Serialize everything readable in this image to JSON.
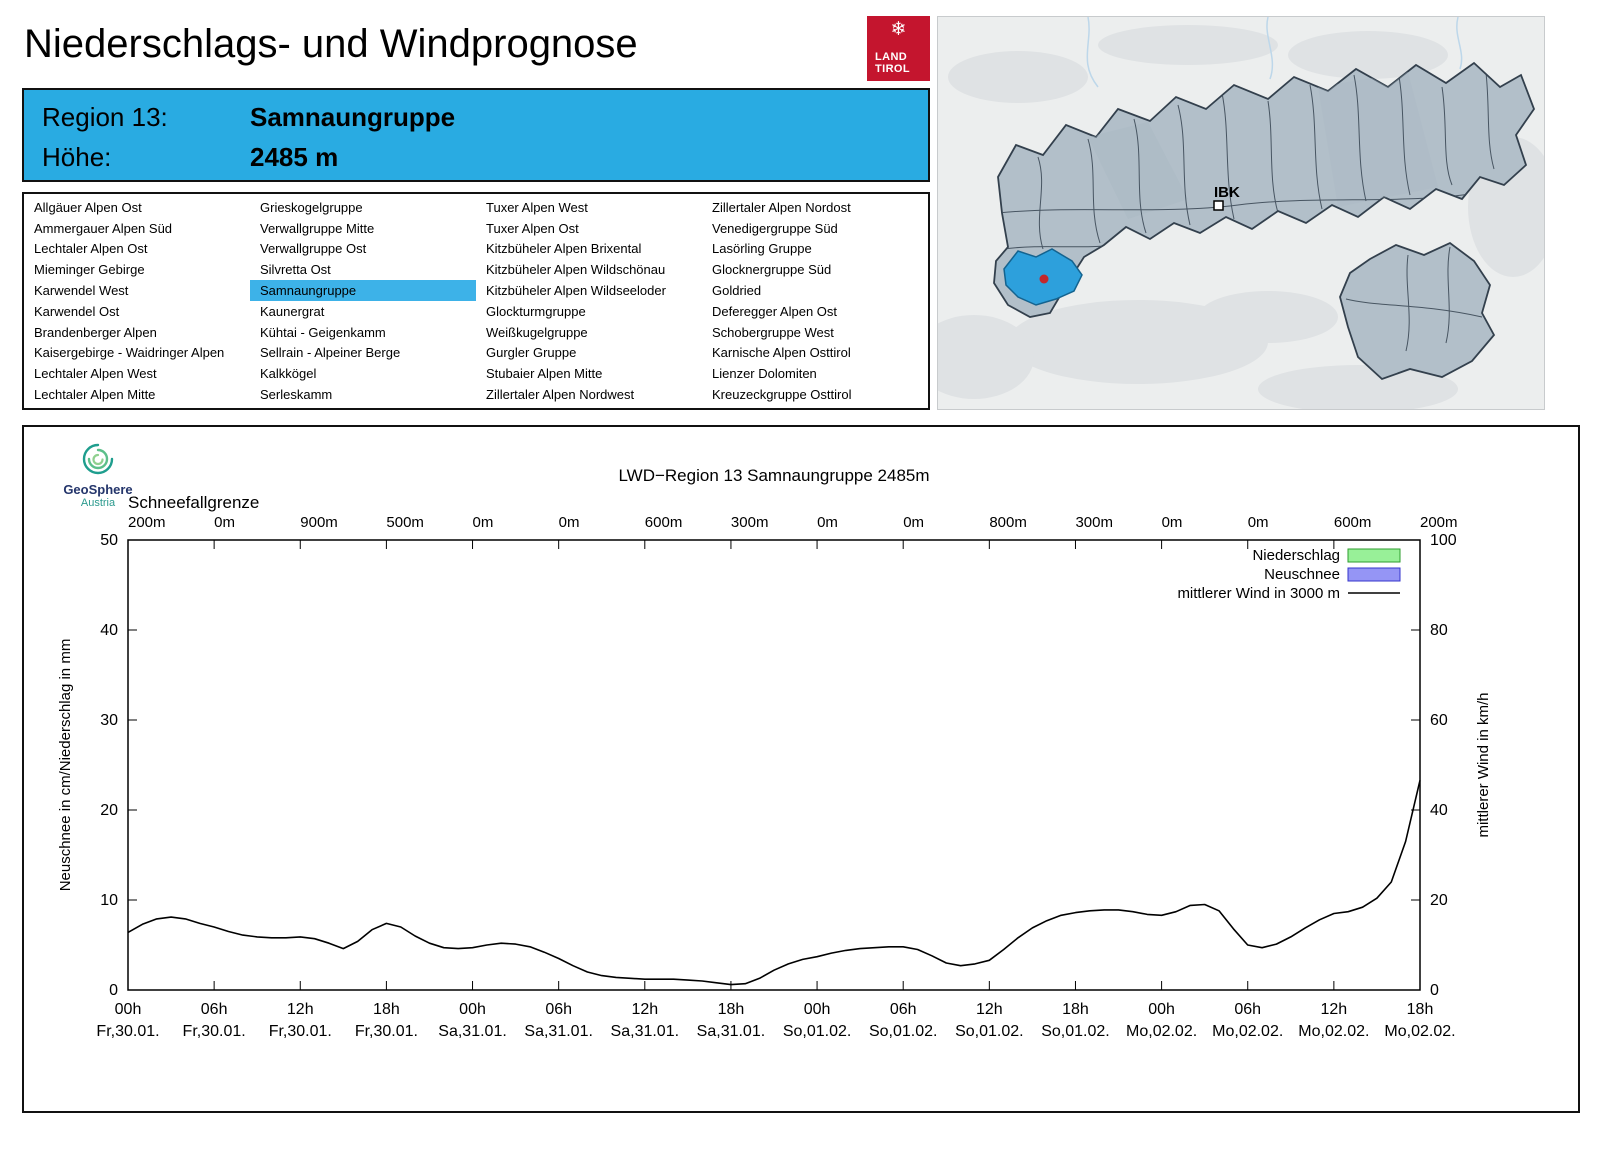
{
  "header": {
    "title": "Niederschlags- und Windprognose",
    "logo": {
      "line1": "LAND",
      "line2": "TIROL",
      "snowflake_icon": "❄",
      "brand_color": "#c4152e"
    }
  },
  "region_info": {
    "region_label": "Region 13:",
    "region_name": "Samnaungruppe",
    "elevation_label": "Höhe:",
    "elevation_value": "2485 m",
    "background_color": "#29abe2"
  },
  "map": {
    "marker_label": "IBK",
    "region_fill": "#b2bfc9",
    "region_border": "#33404d",
    "selected_region_color": "#2da0dc",
    "station_dot_color": "#c3272b"
  },
  "region_list": {
    "selected": "Samnaungruppe",
    "highlight_color": "#3db2e8",
    "columns": [
      [
        "Allgäuer Alpen Ost",
        "Ammergauer Alpen Süd",
        "Lechtaler Alpen Ost",
        "Mieminger Gebirge",
        "Karwendel West",
        "Karwendel Ost",
        "Brandenberger Alpen",
        "Kaisergebirge - Waidringer Alpen",
        "Lechtaler Alpen West",
        "Lechtaler Alpen Mitte"
      ],
      [
        "Grieskogelgruppe",
        "Verwallgruppe Mitte",
        "Verwallgruppe Ost",
        "Silvretta Ost",
        "Samnaungruppe",
        "Kaunergrat",
        "Kühtai - Geigenkamm",
        "Sellrain - Alpeiner Berge",
        "Kalkkögel",
        "Serleskamm"
      ],
      [
        "Tuxer Alpen West",
        "Tuxer Alpen Ost",
        "Kitzbüheler Alpen Brixental",
        "Kitzbüheler Alpen Wildschönau",
        "Kitzbüheler Alpen Wildseeloder",
        "Glockturmgruppe",
        "Weißkugelgruppe",
        "Gurgler Gruppe",
        "Stubaier Alpen Mitte",
        "Zillertaler Alpen Nordwest"
      ],
      [
        "Zillertaler Alpen Nordost",
        "Venedigergruppe Süd",
        "Lasörling Gruppe",
        "Glocknergruppe Süd",
        "Goldried",
        "Deferegger Alpen Ost",
        "Schobergruppe West",
        "Karnische Alpen Osttirol",
        "Lienzer Dolomiten",
        "Kreuzeckgruppe Osttirol"
      ]
    ]
  },
  "chart": {
    "logo_name": "GeoSphere",
    "logo_sub": "Austria"
  },
  "chart_data": {
    "type": "line",
    "title": "LWD−Region 13 Samnaungruppe 2485m",
    "snowline_label": "Schneefallgrenze",
    "x_unit": "hours from Fr 30.01. 00h",
    "x_range": [
      0,
      90
    ],
    "x_tick_step": 6,
    "x_ticks": [
      {
        "hour": "00h",
        "day": "Fr,30.01.",
        "snowline": "200m"
      },
      {
        "hour": "06h",
        "day": "Fr,30.01.",
        "snowline": "0m"
      },
      {
        "hour": "12h",
        "day": "Fr,30.01.",
        "snowline": "900m"
      },
      {
        "hour": "18h",
        "day": "Fr,30.01.",
        "snowline": "500m"
      },
      {
        "hour": "00h",
        "day": "Sa,31.01.",
        "snowline": "0m"
      },
      {
        "hour": "06h",
        "day": "Sa,31.01.",
        "snowline": "0m"
      },
      {
        "hour": "12h",
        "day": "Sa,31.01.",
        "snowline": "600m"
      },
      {
        "hour": "18h",
        "day": "Sa,31.01.",
        "snowline": "300m"
      },
      {
        "hour": "00h",
        "day": "So,01.02.",
        "snowline": "0m"
      },
      {
        "hour": "06h",
        "day": "So,01.02.",
        "snowline": "0m"
      },
      {
        "hour": "12h",
        "day": "So,01.02.",
        "snowline": "800m"
      },
      {
        "hour": "18h",
        "day": "So,01.02.",
        "snowline": "300m"
      },
      {
        "hour": "00h",
        "day": "Mo,02.02.",
        "snowline": "0m"
      },
      {
        "hour": "06h",
        "day": "Mo,02.02.",
        "snowline": "0m"
      },
      {
        "hour": "12h",
        "day": "Mo,02.02.",
        "snowline": "600m"
      },
      {
        "hour": "18h",
        "day": "Mo,02.02.",
        "snowline": "200m"
      }
    ],
    "y_left": {
      "label": "Neuschnee in cm/Niederschlag in mm",
      "range": [
        0,
        50
      ],
      "ticks": [
        0,
        10,
        20,
        30,
        40,
        50
      ]
    },
    "y_right": {
      "label": "mittlerer Wind in km/h",
      "range": [
        0,
        100
      ],
      "ticks": [
        0,
        20,
        40,
        60,
        80,
        100
      ]
    },
    "legend_position": "top-right",
    "grid": false,
    "series": [
      {
        "name": "Niederschlag",
        "type": "bar",
        "axis": "left",
        "color": "#98f098",
        "border": "#2e9e2e",
        "values": []
      },
      {
        "name": "Neuschnee",
        "type": "bar",
        "axis": "left",
        "color": "#9595f5",
        "border": "#3535cc",
        "values": []
      },
      {
        "name": "mittlerer Wind in 3000 m",
        "type": "line",
        "axis": "right",
        "color": "#000000",
        "points": [
          [
            0,
            12.8
          ],
          [
            1,
            14.6
          ],
          [
            2,
            15.8
          ],
          [
            3,
            16.2
          ],
          [
            4,
            15.8
          ],
          [
            5,
            14.8
          ],
          [
            6,
            14
          ],
          [
            7,
            13
          ],
          [
            8,
            12.2
          ],
          [
            9,
            11.8
          ],
          [
            10,
            11.6
          ],
          [
            11,
            11.6
          ],
          [
            12,
            11.8
          ],
          [
            13,
            11.4
          ],
          [
            14,
            10.4
          ],
          [
            15,
            9.2
          ],
          [
            16,
            10.8
          ],
          [
            17,
            13.4
          ],
          [
            18,
            14.8
          ],
          [
            19,
            14
          ],
          [
            20,
            12
          ],
          [
            21,
            10.4
          ],
          [
            22,
            9.4
          ],
          [
            23,
            9.2
          ],
          [
            24,
            9.4
          ],
          [
            25,
            10
          ],
          [
            26,
            10.4
          ],
          [
            27,
            10.2
          ],
          [
            28,
            9.6
          ],
          [
            29,
            8.4
          ],
          [
            30,
            7
          ],
          [
            31,
            5.4
          ],
          [
            32,
            4
          ],
          [
            33,
            3.2
          ],
          [
            34,
            2.8
          ],
          [
            35,
            2.6
          ],
          [
            36,
            2.4
          ],
          [
            37,
            2.4
          ],
          [
            38,
            2.4
          ],
          [
            39,
            2.2
          ],
          [
            40,
            2
          ],
          [
            41,
            1.6
          ],
          [
            42,
            1.2
          ],
          [
            43,
            1.4
          ],
          [
            44,
            2.6
          ],
          [
            45,
            4.4
          ],
          [
            46,
            5.8
          ],
          [
            47,
            6.8
          ],
          [
            48,
            7.4
          ],
          [
            49,
            8.2
          ],
          [
            50,
            8.8
          ],
          [
            51,
            9.2
          ],
          [
            52,
            9.4
          ],
          [
            53,
            9.6
          ],
          [
            54,
            9.6
          ],
          [
            55,
            9
          ],
          [
            56,
            7.6
          ],
          [
            57,
            6
          ],
          [
            58,
            5.4
          ],
          [
            59,
            5.8
          ],
          [
            60,
            6.6
          ],
          [
            61,
            9
          ],
          [
            62,
            11.6
          ],
          [
            63,
            13.8
          ],
          [
            64,
            15.4
          ],
          [
            65,
            16.6
          ],
          [
            66,
            17.2
          ],
          [
            67,
            17.6
          ],
          [
            68,
            17.8
          ],
          [
            69,
            17.8
          ],
          [
            70,
            17.4
          ],
          [
            71,
            16.8
          ],
          [
            72,
            16.6
          ],
          [
            73,
            17.4
          ],
          [
            74,
            18.8
          ],
          [
            75,
            19
          ],
          [
            76,
            17.6
          ],
          [
            77,
            13.6
          ],
          [
            78,
            10
          ],
          [
            79,
            9.4
          ],
          [
            80,
            10.2
          ],
          [
            81,
            11.8
          ],
          [
            82,
            13.8
          ],
          [
            83,
            15.6
          ],
          [
            84,
            17
          ],
          [
            85,
            17.4
          ],
          [
            86,
            18.4
          ],
          [
            87,
            20.4
          ],
          [
            88,
            24
          ],
          [
            89,
            33
          ],
          [
            90,
            46.6
          ]
        ]
      }
    ]
  }
}
